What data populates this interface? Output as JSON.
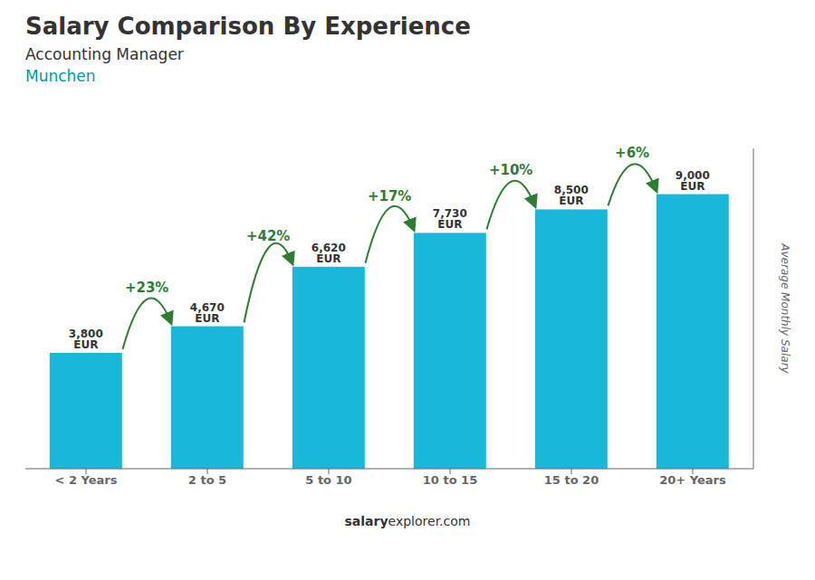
{
  "chart_data": {
    "type": "bar",
    "title": "Salary Comparison By Experience",
    "subtitle": "Accounting Manager",
    "annotations": [
      "Munchen",
      "salary",
      "explorer.com"
    ],
    "ylabel": "Average Monthly Salary",
    "categories": [
      "< 2 Years",
      "2 to 5",
      "5 to 10",
      "10 to 15",
      "15 to 20",
      "20+ Years"
    ],
    "values": [
      3800,
      4670,
      6620,
      7730,
      8500,
      9000
    ],
    "value_labels": [
      "3,800 EUR",
      "4,670 EUR",
      "6,620 EUR",
      "7,730 EUR",
      "8,500 EUR",
      "9,000 EUR"
    ],
    "data_labels": true,
    "pct_changes": [
      23,
      42,
      17,
      10,
      6
    ],
    "pct_change_labels": [
      "+23%",
      "+42%",
      "+17%",
      "+10%",
      "+6%"
    ],
    "color": "#1ab8d8",
    "ylim": [
      0,
      10500
    ],
    "tick_labels": "x"
  }
}
